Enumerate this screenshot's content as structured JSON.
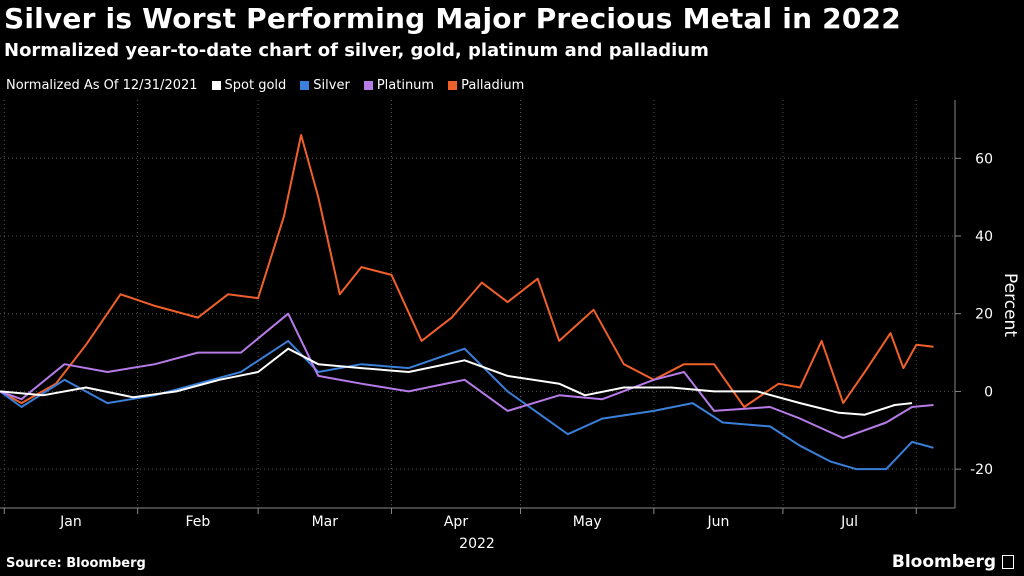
{
  "header": {
    "title": "Silver is Worst Performing Major Precious Metal in 2022",
    "subtitle": "Normalized year-to-date chart of silver, gold, platinum and palladium"
  },
  "legend": {
    "note": "Normalized As Of 12/31/2021",
    "items": [
      {
        "label": "Spot gold",
        "color": "#ffffff"
      },
      {
        "label": "Silver",
        "color": "#3a7fd9"
      },
      {
        "label": "Platinum",
        "color": "#b77be8"
      },
      {
        "label": "Palladium",
        "color": "#f0602a"
      }
    ]
  },
  "footer": {
    "source": "Source: Bloomberg",
    "brand": "Bloomberg"
  },
  "chart_data": {
    "type": "line",
    "title": "Silver is Worst Performing Major Precious Metal in 2022",
    "subtitle": "Normalized year-to-date chart of silver, gold, platinum and palladium",
    "xlabel": "2022",
    "ylabel": "Percent",
    "x_ticks": [
      "Jan",
      "Feb",
      "Mar",
      "Apr",
      "May",
      "Jun",
      "Jul"
    ],
    "y_ticks": [
      -20,
      0,
      20,
      40,
      60
    ],
    "ylim": [
      -30,
      75
    ],
    "xlim": [
      "2021-12-31",
      "2022-07-31"
    ],
    "grid": "vertical dotted + horizontal dotted",
    "legend_position": "top",
    "series": [
      {
        "name": "Spot gold",
        "color": "#ffffff",
        "points": [
          [
            "2021-12-31",
            0
          ],
          [
            "2022-01-10",
            -1
          ],
          [
            "2022-01-20",
            1
          ],
          [
            "2022-01-31",
            -1.5
          ],
          [
            "2022-02-10",
            0
          ],
          [
            "2022-02-20",
            3
          ],
          [
            "2022-03-01",
            5
          ],
          [
            "2022-03-08",
            11
          ],
          [
            "2022-03-15",
            7
          ],
          [
            "2022-03-25",
            6
          ],
          [
            "2022-04-05",
            5
          ],
          [
            "2022-04-18",
            8
          ],
          [
            "2022-04-28",
            4
          ],
          [
            "2022-05-10",
            2
          ],
          [
            "2022-05-16",
            -1
          ],
          [
            "2022-05-25",
            1
          ],
          [
            "2022-06-05",
            1
          ],
          [
            "2022-06-15",
            0
          ],
          [
            "2022-06-25",
            0
          ],
          [
            "2022-07-05",
            -3
          ],
          [
            "2022-07-14",
            -5.5
          ],
          [
            "2022-07-20",
            -6
          ],
          [
            "2022-07-27",
            -3.5
          ],
          [
            "2022-07-31",
            -3
          ]
        ]
      },
      {
        "name": "Silver",
        "color": "#3a7fd9",
        "points": [
          [
            "2021-12-31",
            0
          ],
          [
            "2022-01-05",
            -4
          ],
          [
            "2022-01-15",
            3
          ],
          [
            "2022-01-25",
            -3
          ],
          [
            "2022-02-05",
            -1
          ],
          [
            "2022-02-15",
            2
          ],
          [
            "2022-02-25",
            5
          ],
          [
            "2022-03-08",
            13
          ],
          [
            "2022-03-15",
            5
          ],
          [
            "2022-03-25",
            7
          ],
          [
            "2022-04-05",
            6
          ],
          [
            "2022-04-18",
            11
          ],
          [
            "2022-04-28",
            0
          ],
          [
            "2022-05-12",
            -11
          ],
          [
            "2022-05-20",
            -7
          ],
          [
            "2022-06-01",
            -5
          ],
          [
            "2022-06-10",
            -3
          ],
          [
            "2022-06-17",
            -8
          ],
          [
            "2022-06-28",
            -9
          ],
          [
            "2022-07-05",
            -14
          ],
          [
            "2022-07-12",
            -18
          ],
          [
            "2022-07-18",
            -20
          ],
          [
            "2022-07-25",
            -20
          ],
          [
            "2022-07-31",
            -13
          ],
          [
            "2022-08-05",
            -14.5
          ]
        ]
      },
      {
        "name": "Platinum",
        "color": "#b77be8",
        "points": [
          [
            "2021-12-31",
            0
          ],
          [
            "2022-01-05",
            -2
          ],
          [
            "2022-01-15",
            7
          ],
          [
            "2022-01-25",
            5
          ],
          [
            "2022-02-05",
            7
          ],
          [
            "2022-02-15",
            10
          ],
          [
            "2022-02-25",
            10
          ],
          [
            "2022-03-08",
            20
          ],
          [
            "2022-03-15",
            4
          ],
          [
            "2022-03-25",
            2
          ],
          [
            "2022-04-05",
            0
          ],
          [
            "2022-04-18",
            3
          ],
          [
            "2022-04-28",
            -5
          ],
          [
            "2022-05-10",
            -1
          ],
          [
            "2022-05-20",
            -2
          ],
          [
            "2022-06-01",
            3
          ],
          [
            "2022-06-08",
            5
          ],
          [
            "2022-06-15",
            -5
          ],
          [
            "2022-06-28",
            -4
          ],
          [
            "2022-07-05",
            -7
          ],
          [
            "2022-07-15",
            -12
          ],
          [
            "2022-07-25",
            -8
          ],
          [
            "2022-07-31",
            -4
          ],
          [
            "2022-08-05",
            -3.5
          ]
        ]
      },
      {
        "name": "Palladium",
        "color": "#f0602a",
        "points": [
          [
            "2021-12-31",
            0
          ],
          [
            "2022-01-05",
            -3
          ],
          [
            "2022-01-13",
            2
          ],
          [
            "2022-01-20",
            12
          ],
          [
            "2022-01-28",
            25
          ],
          [
            "2022-02-05",
            22
          ],
          [
            "2022-02-15",
            19
          ],
          [
            "2022-02-22",
            25
          ],
          [
            "2022-03-01",
            24
          ],
          [
            "2022-03-07",
            45
          ],
          [
            "2022-03-11",
            66
          ],
          [
            "2022-03-15",
            50
          ],
          [
            "2022-03-20",
            25
          ],
          [
            "2022-03-25",
            32
          ],
          [
            "2022-04-01",
            30
          ],
          [
            "2022-04-08",
            13
          ],
          [
            "2022-04-15",
            19
          ],
          [
            "2022-04-22",
            28
          ],
          [
            "2022-04-28",
            23
          ],
          [
            "2022-05-05",
            29
          ],
          [
            "2022-05-10",
            13
          ],
          [
            "2022-05-18",
            21
          ],
          [
            "2022-05-25",
            7
          ],
          [
            "2022-06-01",
            3
          ],
          [
            "2022-06-08",
            7
          ],
          [
            "2022-06-15",
            7
          ],
          [
            "2022-06-22",
            -4
          ],
          [
            "2022-06-30",
            2
          ],
          [
            "2022-07-05",
            1
          ],
          [
            "2022-07-10",
            13
          ],
          [
            "2022-07-15",
            -3
          ],
          [
            "2022-07-20",
            5
          ],
          [
            "2022-07-26",
            15
          ],
          [
            "2022-07-29",
            6
          ],
          [
            "2022-08-01",
            12
          ],
          [
            "2022-08-05",
            11.5
          ]
        ]
      }
    ]
  }
}
